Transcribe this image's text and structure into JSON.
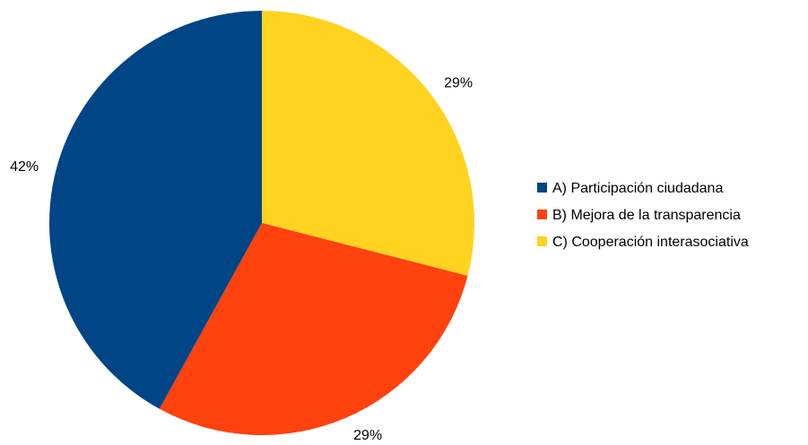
{
  "chart_data": {
    "type": "pie",
    "categories": [
      "A) Participación ciudadana",
      "B) Mejora de la transparencia",
      "C) Cooperación interasociativa"
    ],
    "values": [
      42,
      29,
      29
    ],
    "labels": [
      "42%",
      "29%",
      "29%"
    ],
    "colors": [
      "#004586",
      "#ff420e",
      "#ffd320"
    ],
    "legend": "right",
    "title": ""
  }
}
